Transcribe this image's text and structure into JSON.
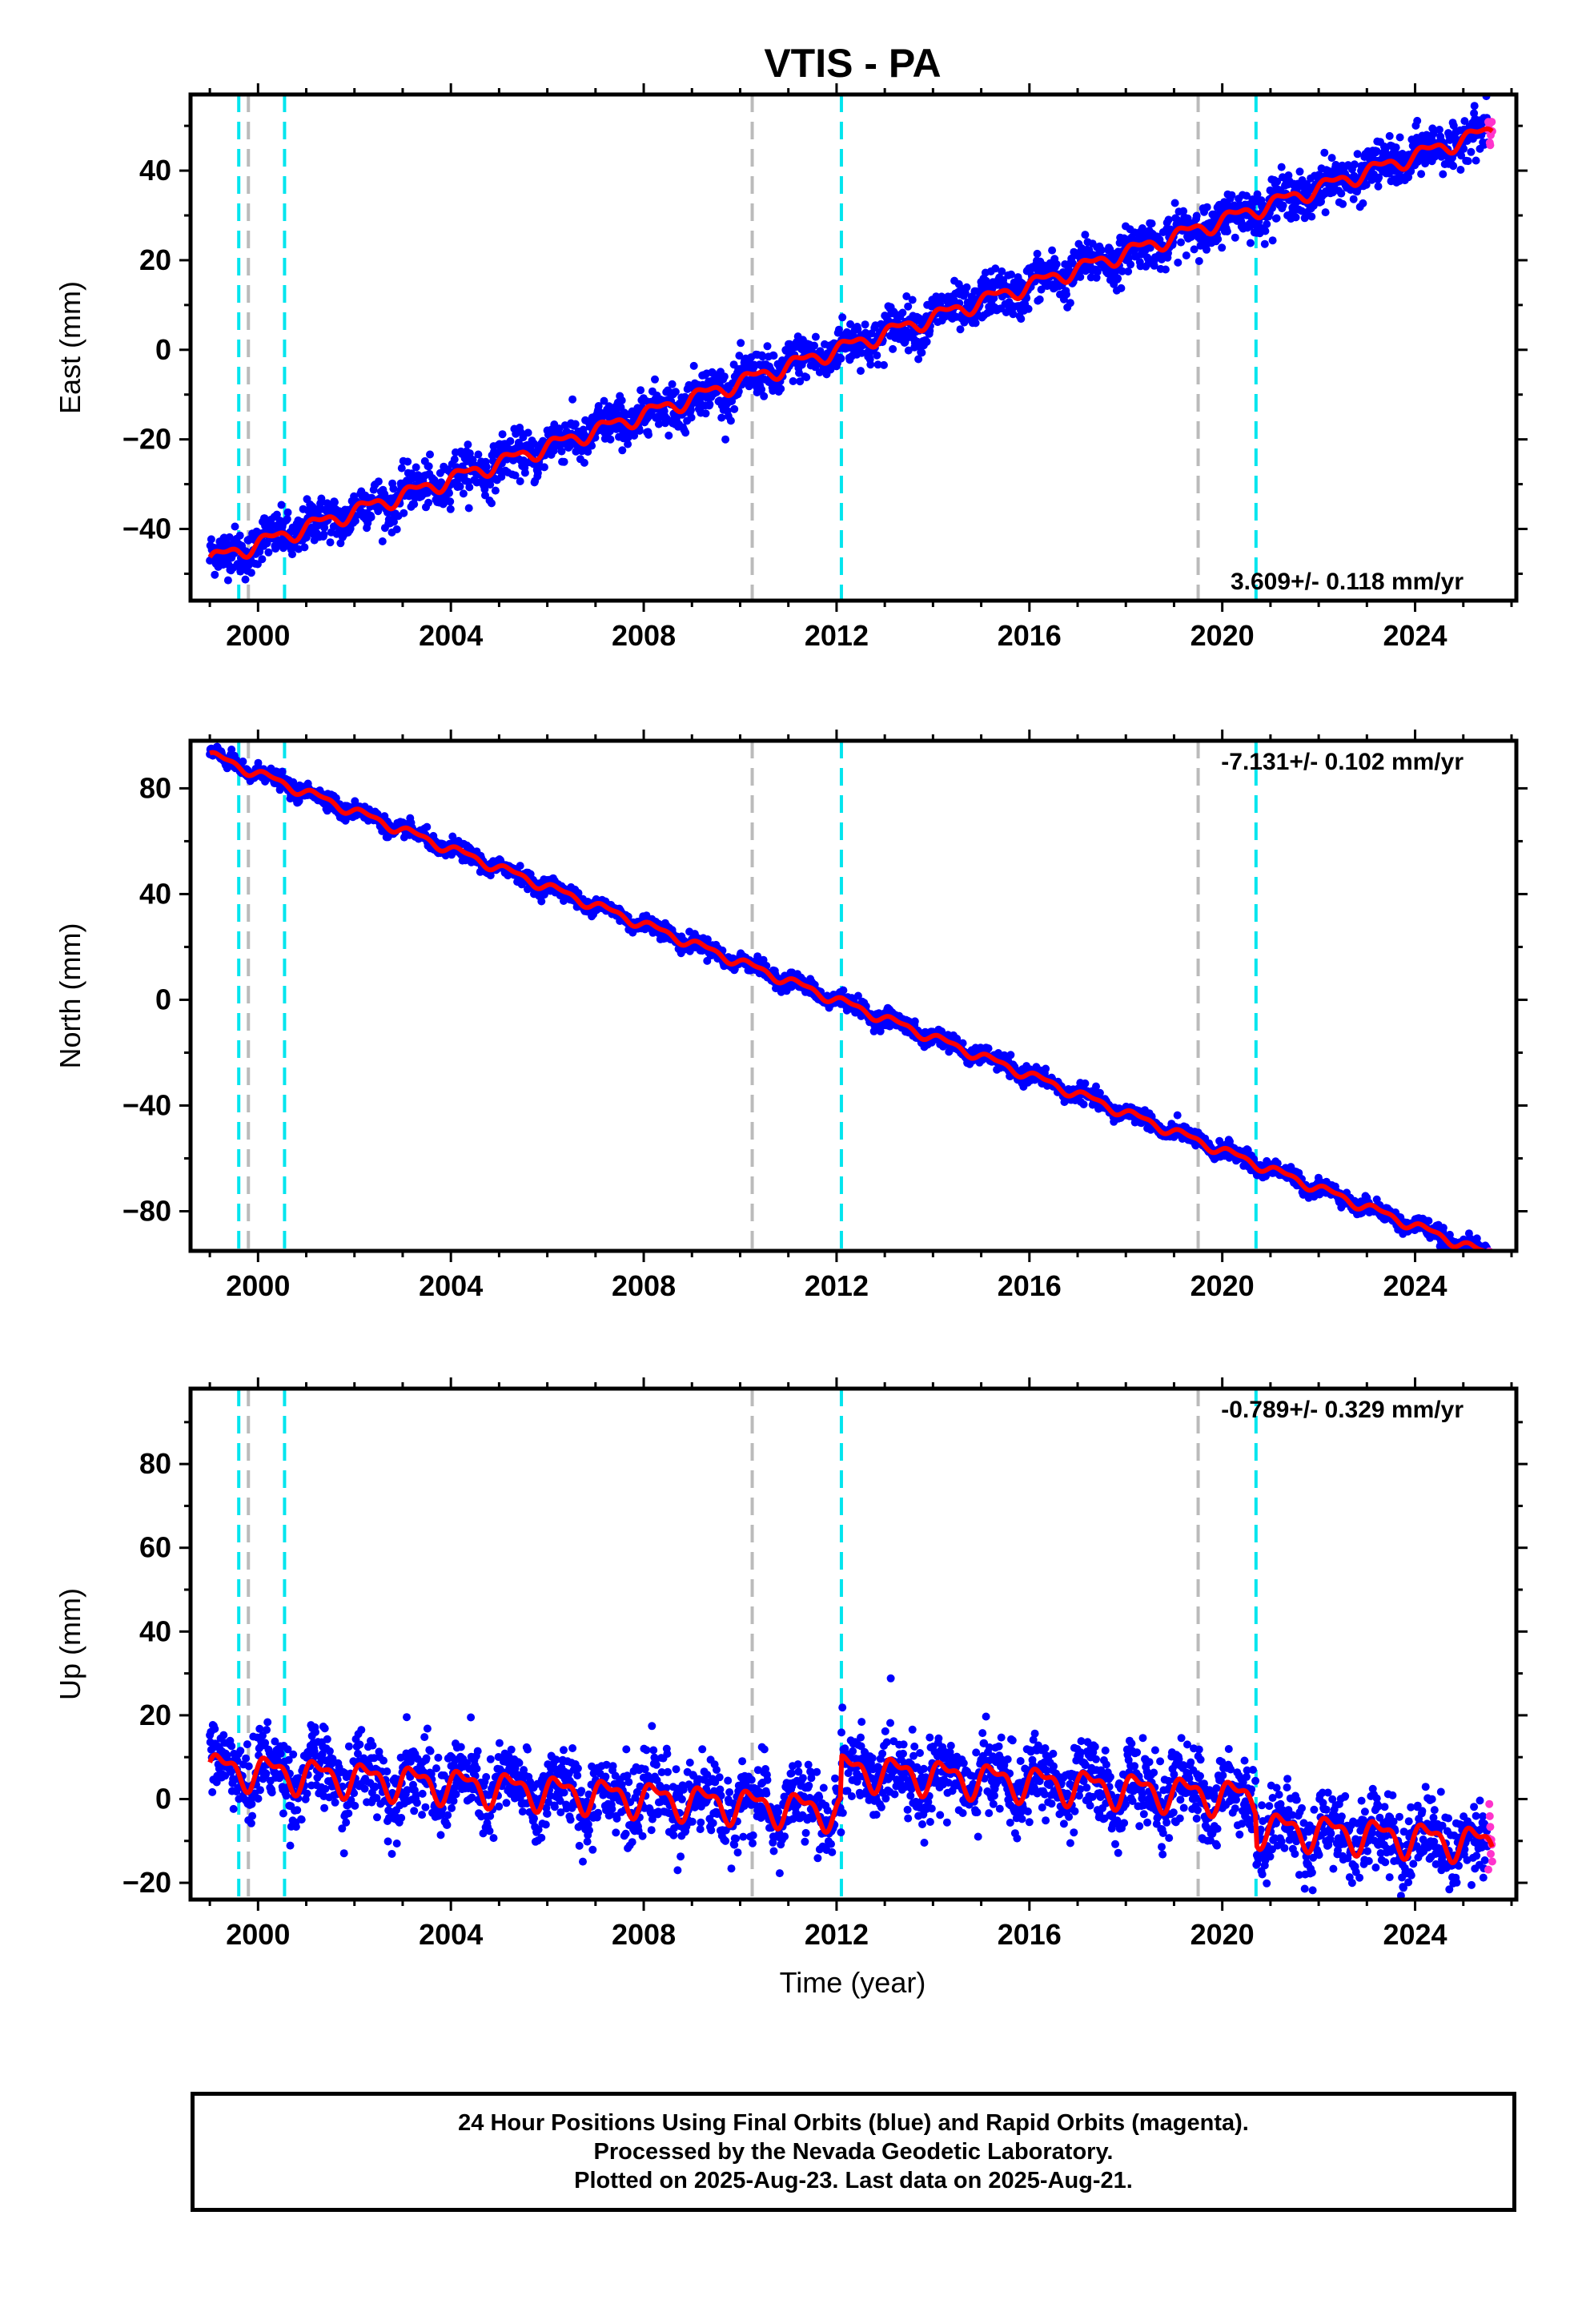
{
  "title": "VTIS - PA",
  "colors": {
    "final_orbits": "#0000ff",
    "rapid_orbits": "#ff33cc",
    "model_fit": "#ff0000",
    "equipment_change_line": "#00e5ee",
    "other_event_line": "#bbbbbb",
    "axes": "#000000"
  },
  "chart_data": [
    {
      "type": "scatter",
      "name": "east",
      "ylabel": "East (mm)",
      "xlim": [
        1998.6,
        2026.1
      ],
      "ylim": [
        -56,
        57
      ],
      "yticks": [
        -40,
        -20,
        0,
        20,
        40
      ],
      "xticks": [
        2000,
        2004,
        2008,
        2012,
        2016,
        2020,
        2024
      ],
      "velocity_label": "3.609+/- 0.118 mm/yr",
      "velocity_label_position": "bottom-right",
      "rate_mm_per_yr": 3.609,
      "value_at_2012": 0,
      "seasonal_amplitude": 1.5,
      "scatter_noise": 2.5,
      "steps": [],
      "start_year": 1999.0,
      "end_year": 2025.6,
      "rapid_start_year": 2025.5
    },
    {
      "type": "scatter",
      "name": "north",
      "ylabel": "North (mm)",
      "xlim": [
        1998.6,
        2026.1
      ],
      "ylim": [
        -95,
        98
      ],
      "yticks": [
        -80,
        -40,
        0,
        40,
        80
      ],
      "xticks": [
        2000,
        2004,
        2008,
        2012,
        2016,
        2020,
        2024
      ],
      "velocity_label": "-7.131+/- 0.102 mm/yr",
      "velocity_label_position": "top-right",
      "rate_mm_per_yr": -7.131,
      "value_at_2012": 0,
      "seasonal_amplitude": 1.5,
      "scatter_noise": 1.5,
      "steps": [],
      "start_year": 1999.0,
      "end_year": 2025.6,
      "rapid_start_year": 2025.5
    },
    {
      "type": "scatter",
      "name": "up",
      "ylabel": "Up (mm)",
      "xlabel": "Time (year)",
      "xlim": [
        1998.6,
        2026.1
      ],
      "ylim": [
        -24,
        98
      ],
      "yticks": [
        -20,
        0,
        20,
        40,
        60,
        80
      ],
      "xticks": [
        2000,
        2004,
        2008,
        2012,
        2016,
        2020,
        2024
      ],
      "velocity_label": "-0.789+/- 0.329 mm/yr",
      "velocity_label_position": "top-right",
      "rate_mm_per_yr": -0.789,
      "value_at_2012": -3,
      "seasonal_amplitude": 3.5,
      "scatter_noise": 4.5,
      "steps": [
        [
          2012.1,
          10
        ],
        [
          2020.7,
          -7
        ]
      ],
      "start_year": 1999.0,
      "end_year": 2025.6,
      "rapid_start_year": 2025.5
    }
  ],
  "event_lines": {
    "equipment_change": [
      1999.6,
      2000.55,
      2012.1,
      2020.7
    ],
    "other_event": [
      1999.8,
      2010.25,
      2019.5
    ]
  },
  "caption": {
    "line1": "24 Hour Positions Using Final Orbits (blue) and Rapid Orbits (magenta).",
    "line2": "Processed by the Nevada Geodetic Laboratory.",
    "line3": "Plotted on 2025-Aug-23. Last data on 2025-Aug-21."
  }
}
